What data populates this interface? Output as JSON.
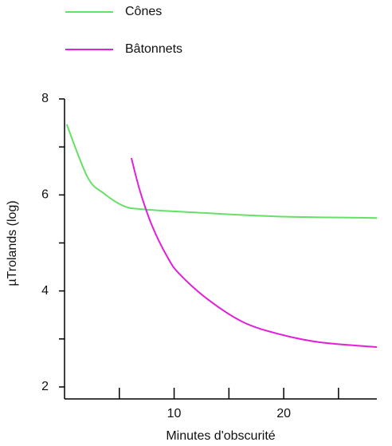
{
  "chart_data": {
    "type": "line",
    "x_label": "Minutes d'obscurité",
    "y_label": "µTrolands (log)",
    "xlim": [
      0,
      28.5
    ],
    "ylim": [
      1.75,
      8
    ],
    "xticks": [
      10,
      20
    ],
    "minor_xticks": [
      5,
      15,
      25
    ],
    "yticks": [
      2,
      4,
      6,
      8
    ],
    "minor_yticks": [
      3,
      5,
      7
    ],
    "legend": "top-left",
    "series": [
      {
        "name": "Cônes",
        "color": "#66e066",
        "x": [
          0.2,
          2.1,
          3.6,
          5.4,
          7.2,
          12.3,
          19.6,
          28.5
        ],
        "values": [
          7.47,
          6.37,
          6.03,
          5.77,
          5.7,
          5.63,
          5.55,
          5.52
        ]
      },
      {
        "name": "Bâtonnets",
        "color": "#e020d8",
        "x": [
          6.1,
          6.9,
          8.0,
          9.4,
          10.5,
          13.1,
          16.3,
          19.6,
          23.3,
          28.5
        ],
        "values": [
          6.77,
          6.07,
          5.35,
          4.7,
          4.35,
          3.82,
          3.35,
          3.1,
          2.93,
          2.83
        ]
      }
    ]
  }
}
